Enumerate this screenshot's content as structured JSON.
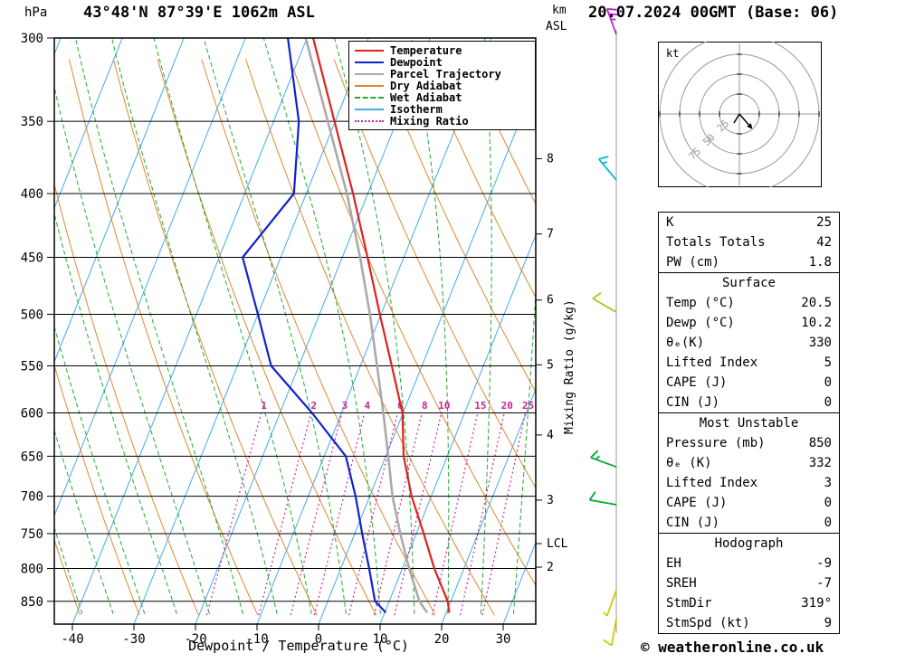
{
  "header": {
    "pressure_unit": "hPa",
    "station": "43°48'N 87°39'E 1062m ASL",
    "km": "km",
    "asl": "ASL",
    "datetime": "20.07.2024 00GMT (Base: 06)"
  },
  "legend": {
    "items": [
      {
        "label": "Temperature",
        "color": "#dd2222",
        "style": "solid"
      },
      {
        "label": "Dewpoint",
        "color": "#1122cc",
        "style": "solid"
      },
      {
        "label": "Parcel Trajectory",
        "color": "#aaaaaa",
        "style": "solid"
      },
      {
        "label": "Dry Adiabat",
        "color": "#dd8833",
        "style": "solid"
      },
      {
        "label": "Wet Adiabat",
        "color": "#22aa33",
        "style": "dashed"
      },
      {
        "label": "Isotherm",
        "color": "#44aaee",
        "style": "solid"
      },
      {
        "label": "Mixing Ratio",
        "color": "#cc2299",
        "style": "dotted"
      }
    ]
  },
  "axes": {
    "pressure_ticks": [
      300,
      350,
      400,
      450,
      500,
      550,
      600,
      650,
      700,
      750,
      800,
      850
    ],
    "temp_ticks": [
      -40,
      -30,
      -20,
      -10,
      0,
      10,
      20,
      30
    ],
    "km_ticks": [
      {
        "km": 8,
        "p": 375
      },
      {
        "km": 7,
        "p": 431
      },
      {
        "km": 6,
        "p": 487
      },
      {
        "km": 5,
        "p": 549
      },
      {
        "km": 4,
        "p": 625
      },
      {
        "km": 3,
        "p": 705
      },
      {
        "km": 2,
        "p": 798
      }
    ],
    "lcl": {
      "label": "LCL",
      "p": 764
    },
    "xlabel": "Dewpoint / Temperature (°C)",
    "mixing_axis_label": "Mixing Ratio (g/kg)"
  },
  "chart_data": {
    "type": "line",
    "projection": "skew-T log-P",
    "x": "temperature_C",
    "y": "pressure_hPa",
    "pressure_range": [
      300,
      872
    ],
    "temp_axis_range": [
      -45,
      37
    ],
    "temperature_profile": [
      [
        868,
        20.5
      ],
      [
        850,
        19.5
      ],
      [
        800,
        15.2
      ],
      [
        750,
        11.2
      ],
      [
        700,
        6.8
      ],
      [
        650,
        2.9
      ],
      [
        600,
        -0.1
      ],
      [
        550,
        -4.9
      ],
      [
        500,
        -10.2
      ],
      [
        450,
        -15.9
      ],
      [
        400,
        -22.4
      ],
      [
        350,
        -30.1
      ],
      [
        300,
        -39.0
      ]
    ],
    "dewpoint_profile": [
      [
        868,
        10.2
      ],
      [
        850,
        7.7
      ],
      [
        800,
        4.6
      ],
      [
        750,
        1.2
      ],
      [
        700,
        -2.3
      ],
      [
        650,
        -6.5
      ],
      [
        600,
        -14.8
      ],
      [
        550,
        -24.5
      ],
      [
        500,
        -30.0
      ],
      [
        450,
        -36.2
      ],
      [
        400,
        -32.0
      ],
      [
        350,
        -35.9
      ],
      [
        300,
        -43.1
      ]
    ],
    "parcel_profile": [
      [
        868,
        16.9
      ],
      [
        850,
        14.9
      ],
      [
        800,
        11.1
      ],
      [
        750,
        7.4
      ],
      [
        700,
        3.7
      ],
      [
        650,
        0.4
      ],
      [
        600,
        -3.2
      ],
      [
        550,
        -7.3
      ],
      [
        500,
        -11.8
      ],
      [
        450,
        -17.1
      ],
      [
        400,
        -23.4
      ],
      [
        350,
        -31.2
      ],
      [
        300,
        -40.2
      ]
    ],
    "isotherms_C": [
      -80,
      -70,
      -60,
      -50,
      -40,
      -30,
      -20,
      -10,
      0,
      10,
      20,
      30,
      40
    ],
    "dry_adiabats_C": [
      -30,
      -20,
      -10,
      0,
      10,
      20,
      30,
      40,
      50,
      60,
      70,
      80,
      90,
      100,
      110
    ],
    "wet_adiabats_C": [
      -30,
      -25,
      -20,
      -15,
      -10,
      -5,
      0,
      5,
      10,
      15,
      20,
      25,
      30,
      35,
      40
    ],
    "mixing_ratios_gkg": [
      1,
      2,
      3,
      4,
      6,
      8,
      10,
      15,
      20,
      25
    ],
    "wind_barbs": [
      {
        "p": 298,
        "dir": 340,
        "spd": 25,
        "color": "#bb22cc"
      },
      {
        "p": 390,
        "dir": 320,
        "spd": 15,
        "color": "#00bbcc"
      },
      {
        "p": 498,
        "dir": 300,
        "spd": 10,
        "color": "#99cc22"
      },
      {
        "p": 663,
        "dir": 290,
        "spd": 15,
        "color": "#00aa33"
      },
      {
        "p": 711,
        "dir": 280,
        "spd": 10,
        "color": "#00aa33"
      },
      {
        "p": 833,
        "dir": 200,
        "spd": 5,
        "color": "#cccc00"
      },
      {
        "p": 878,
        "dir": 190,
        "spd": 10,
        "color": "#cccc00"
      }
    ],
    "colors": {
      "temperature": "#dd2222",
      "dewpoint": "#1122cc",
      "parcel": "#aaaaaa",
      "dry_adiabat": "#dd8833",
      "wet_adiabat": "#22aa33",
      "isotherm": "#44aaee",
      "mixing_ratio": "#cc2299",
      "pressure_line": "#000000"
    }
  },
  "hodograph": {
    "unit": "kt",
    "rings": [
      25,
      50,
      75,
      100
    ],
    "labeled_rings": [
      25,
      50,
      75
    ],
    "storm_dir_deg": 319,
    "storm_speed_kt": 9
  },
  "stats": {
    "indices": [
      [
        "K",
        "25"
      ],
      [
        "Totals Totals",
        "42"
      ],
      [
        "PW (cm)",
        "1.8"
      ]
    ],
    "surface": {
      "title": "Surface",
      "rows": [
        [
          "Temp (°C)",
          "20.5"
        ],
        [
          "Dewp (°C)",
          "10.2"
        ],
        [
          "θₑ(K)",
          "330"
        ],
        [
          "Lifted Index",
          "5"
        ],
        [
          "CAPE (J)",
          "0"
        ],
        [
          "CIN (J)",
          "0"
        ]
      ]
    },
    "most_unstable": {
      "title": "Most Unstable",
      "rows": [
        [
          "Pressure (mb)",
          "850"
        ],
        [
          "θₑ (K)",
          "332"
        ],
        [
          "Lifted Index",
          "3"
        ],
        [
          "CAPE (J)",
          "0"
        ],
        [
          "CIN (J)",
          "0"
        ]
      ]
    },
    "hodograph_section": {
      "title": "Hodograph",
      "rows": [
        [
          "EH",
          "-9"
        ],
        [
          "SREH",
          "-7"
        ],
        [
          "StmDir",
          "319°"
        ],
        [
          "StmSpd (kt)",
          "9"
        ]
      ]
    }
  },
  "footer": {
    "copyright": "© weatheronline.co.uk"
  }
}
